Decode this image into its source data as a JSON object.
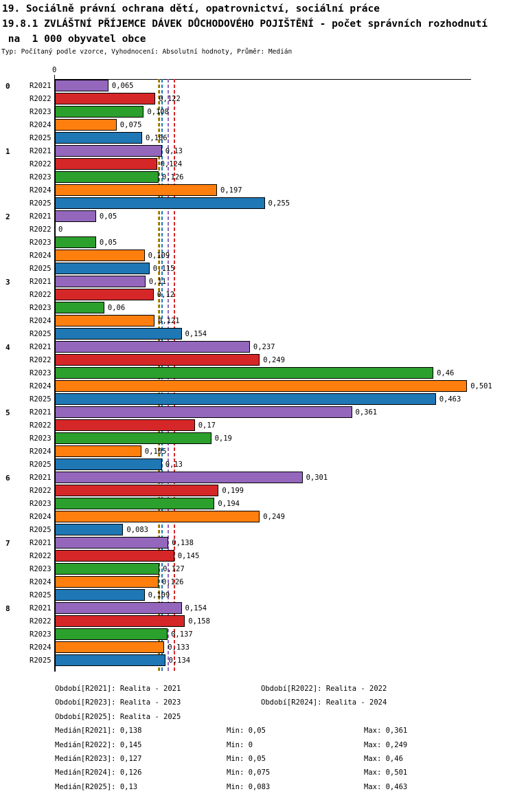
{
  "header": {
    "title_line1": "19. Sociálně právní ochrana dětí, opatrovnictví, sociální práce",
    "title_line2": "19.8.1 ZVLÁŠTNÍ PŘÍJEMCE DÁVEK DŮCHODOVÉHO POJIŠTĚNÍ - počet správních rozhodnutí",
    "title_line3": " na  1 000 obyvatel obce",
    "meta": "Typ: Počítaný podle vzorce, Vyhodnocení: Absolutní hodnoty, Průměr: Medián"
  },
  "chart_data": {
    "type": "bar",
    "orientation": "horizontal",
    "title": "19.8.1 ZVLÁŠTNÍ PŘÍJEMCE DÁVEK DŮCHODOVÉHO POJIŠTĚNÍ - počet správních rozhodnutí na 1 000 obyvatel obce",
    "xlabel": "",
    "ylabel": "",
    "xlim": [
      0,
      0.506
    ],
    "zero_tick_label": "0",
    "grid": false,
    "legend_position": "bottom",
    "categories": [
      "0",
      "1",
      "2",
      "3",
      "4",
      "5",
      "6",
      "7",
      "8"
    ],
    "series": [
      {
        "name": "R2021",
        "color": "#9467bd",
        "values": [
          0.065,
          0.13,
          0.05,
          0.11,
          0.237,
          0.361,
          0.301,
          0.138,
          0.154
        ],
        "labels": [
          "0,065",
          "0,13",
          "0,05",
          "0,11",
          "0,237",
          "0,361",
          "0,301",
          "0,138",
          "0,154"
        ]
      },
      {
        "name": "R2022",
        "color": "#d62728",
        "values": [
          0.122,
          0.124,
          0,
          0.12,
          0.249,
          0.17,
          0.199,
          0.145,
          0.158
        ],
        "labels": [
          "0,122",
          "0,124",
          "0",
          "0,12",
          "0,249",
          "0,17",
          "0,199",
          "0,145",
          "0,158"
        ]
      },
      {
        "name": "R2023",
        "color": "#2ca02c",
        "values": [
          0.108,
          0.126,
          0.05,
          0.06,
          0.46,
          0.19,
          0.194,
          0.127,
          0.137
        ],
        "labels": [
          "0,108",
          "0,126",
          "0,05",
          "0,06",
          "0,46",
          "0,19",
          "0,194",
          "0,127",
          "0,137"
        ]
      },
      {
        "name": "R2024",
        "color": "#ff7f0e",
        "values": [
          0.075,
          0.197,
          0.109,
          0.121,
          0.501,
          0.105,
          0.249,
          0.126,
          0.133
        ],
        "labels": [
          "0,075",
          "0,197",
          "0,109",
          "0,121",
          "0,501",
          "0,105",
          "0,249",
          "0,126",
          "0,133"
        ]
      },
      {
        "name": "R2025",
        "color": "#1f77b4",
        "values": [
          0.106,
          0.255,
          0.115,
          0.154,
          0.463,
          0.13,
          0.083,
          0.109,
          0.134
        ],
        "labels": [
          "0,106",
          "0,255",
          "0,115",
          "0,154",
          "0,463",
          "0,13",
          "0,083",
          "0,109",
          "0,134"
        ]
      }
    ],
    "median_lines": [
      {
        "series": "R2024",
        "value": 0.126,
        "color": "#ff7f0e"
      },
      {
        "series": "R2023",
        "value": 0.127,
        "color": "#2ca02c"
      },
      {
        "series": "R2025",
        "value": 0.13,
        "color": "#1f77b4"
      },
      {
        "series": "R2021",
        "value": 0.138,
        "color": "#9467bd"
      },
      {
        "series": "R2022",
        "value": 0.145,
        "color": "#d62728"
      }
    ]
  },
  "legend": {
    "items": [
      {
        "text": "Období[R2021]: Realita - 2021"
      },
      {
        "text": "Období[R2022]: Realita - 2022"
      },
      {
        "text": "Období[R2023]: Realita - 2023"
      },
      {
        "text": "Období[R2024]: Realita - 2024"
      },
      {
        "text": "Období[R2025]: Realita - 2025"
      }
    ]
  },
  "stats": {
    "rows": [
      {
        "median": "Medián[R2021]: 0,138",
        "min": "Min: 0,05",
        "max": "Max: 0,361"
      },
      {
        "median": "Medián[R2022]: 0,145",
        "min": "Min: 0",
        "max": "Max: 0,249"
      },
      {
        "median": "Medián[R2023]: 0,127",
        "min": "Min: 0,05",
        "max": "Max: 0,46"
      },
      {
        "median": "Medián[R2024]: 0,126",
        "min": "Min: 0,075",
        "max": "Max: 0,501"
      },
      {
        "median": "Medián[R2025]: 0,13",
        "min": "Min: 0,083",
        "max": "Max: 0,463"
      }
    ]
  }
}
